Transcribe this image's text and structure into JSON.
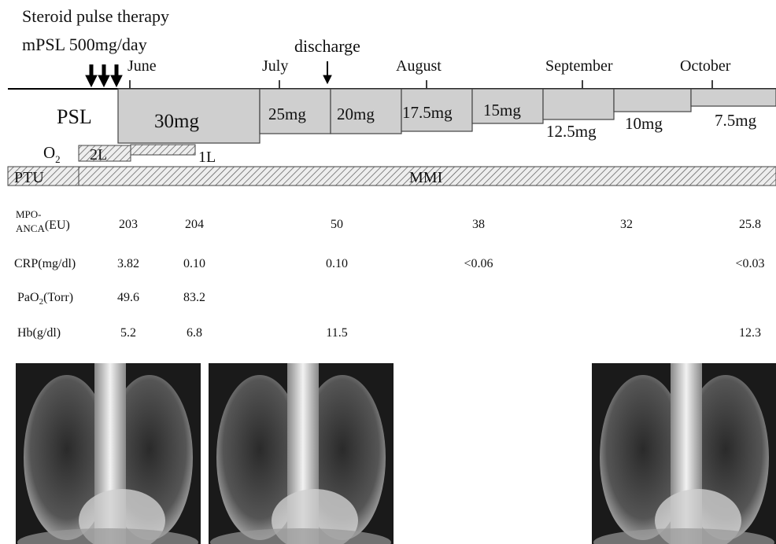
{
  "pulse": {
    "line1": "Steroid pulse therapy",
    "line2": "mPSL 500mg/day"
  },
  "discharge": "discharge",
  "months": [
    "June",
    "July",
    "August",
    "September",
    "October"
  ],
  "psl": {
    "label": "PSL",
    "doses": [
      "30mg",
      "25mg",
      "20mg",
      "17.5mg",
      "15mg",
      "12.5mg",
      "10mg",
      "7.5mg"
    ]
  },
  "o2": {
    "label": "O",
    "sub": "2",
    "doses": [
      "2L",
      "1L"
    ]
  },
  "drugs": {
    "ptu": "PTU",
    "mmi": "MMI"
  },
  "labs": [
    {
      "label": [
        "MPO-",
        "ANCA",
        "(EU)"
      ],
      "values": [
        "203",
        "204",
        "50",
        "38",
        "32",
        "25.8"
      ]
    },
    {
      "label": [
        "CRP(mg/dl)"
      ],
      "values": [
        "3.82",
        "0.10",
        "0.10",
        "<0.06",
        null,
        "<0.03"
      ]
    },
    {
      "label": [
        "PaO",
        "2",
        "(Torr)"
      ],
      "values": [
        "49.6",
        "83.2",
        null,
        null,
        null,
        null
      ]
    },
    {
      "label": [
        "Hb(g/dl)"
      ],
      "values": [
        "5.2",
        "6.8",
        "11.5",
        null,
        null,
        "12.3"
      ]
    }
  ]
}
